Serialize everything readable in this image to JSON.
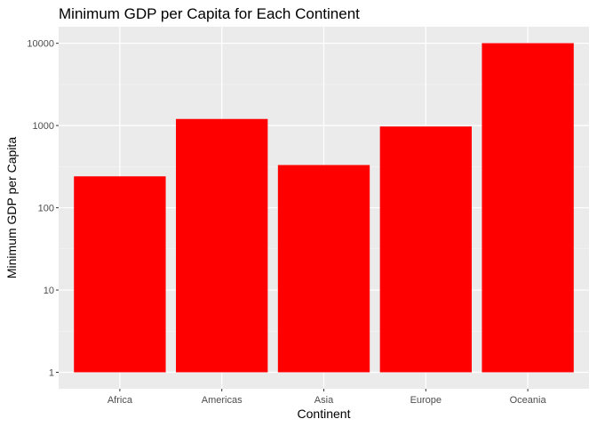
{
  "chart_data": {
    "type": "bar",
    "title": "Minimum GDP per Capita for Each Continent",
    "xlabel": "Continent",
    "ylabel": "Minimum GDP per Capita",
    "categories": [
      "Africa",
      "Americas",
      "Asia",
      "Europe",
      "Oceania"
    ],
    "values": [
      241.17,
      1201.64,
      331.0,
      973.53,
      10039.6
    ],
    "y_scale": "log10",
    "ylim": [
      1,
      10039.6
    ],
    "y_ticks": [
      "1",
      "10",
      "100",
      "1000",
      "10000"
    ],
    "y_tick_values": [
      1,
      10,
      100,
      1000,
      10000
    ],
    "grid": true,
    "legend": "none",
    "colors": {
      "bar": "#FF0000",
      "panel": "#EBEBEB",
      "grid_major": "#FFFFFF",
      "grid_minor": "#F5F5F5",
      "tick_label": "#4D4D4D",
      "tick": "#333333"
    }
  }
}
